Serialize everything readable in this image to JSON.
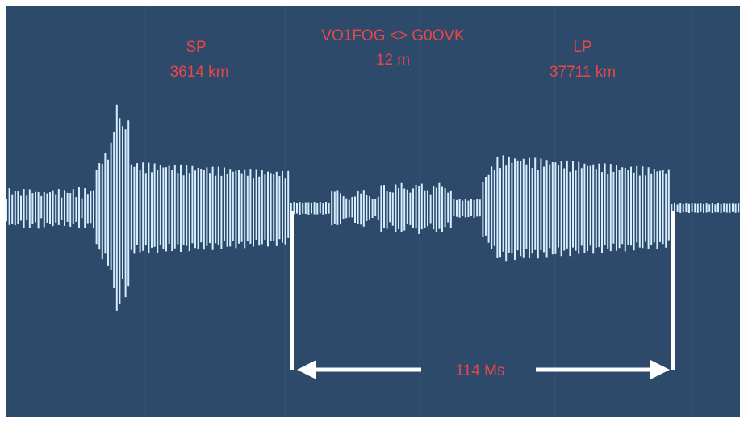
{
  "chart_data": {
    "type": "waveform",
    "title": "VO1FOG <> G0OVK",
    "subtitle": "12 m",
    "annotations": [
      {
        "label": "SP",
        "value": "3614 km"
      },
      {
        "label": "LP",
        "value": "37711 km"
      }
    ],
    "delay_label": "114 Ms",
    "colors": {
      "background": "#2d4a6b",
      "waveform": "#d6ecff",
      "text": "#e8474a",
      "marker": "#ffffff",
      "frame": "#ffffff"
    }
  }
}
